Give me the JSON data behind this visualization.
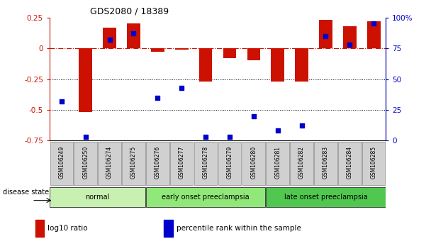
{
  "title": "GDS2080 / 18389",
  "samples": [
    "GSM106249",
    "GSM106250",
    "GSM106274",
    "GSM106275",
    "GSM106276",
    "GSM106277",
    "GSM106278",
    "GSM106279",
    "GSM106280",
    "GSM106281",
    "GSM106282",
    "GSM106283",
    "GSM106284",
    "GSM106285"
  ],
  "log10_ratio": [
    0.0,
    -0.52,
    0.17,
    0.2,
    -0.03,
    -0.01,
    -0.27,
    -0.08,
    -0.1,
    -0.27,
    -0.27,
    0.23,
    0.18,
    0.22
  ],
  "percentile_rank": [
    32,
    3,
    82,
    87,
    35,
    43,
    3,
    3,
    20,
    8,
    12,
    85,
    78,
    95
  ],
  "groups": [
    {
      "label": "normal",
      "start": 0,
      "end": 4,
      "color": "#c8f0b0"
    },
    {
      "label": "early onset preeclampsia",
      "start": 4,
      "end": 9,
      "color": "#90e878"
    },
    {
      "label": "late onset preeclampsia",
      "start": 9,
      "end": 14,
      "color": "#50c850"
    }
  ],
  "bar_color": "#cc1100",
  "dot_color": "#0000cc",
  "ylim_left": [
    -0.75,
    0.25
  ],
  "ylim_right": [
    0,
    100
  ],
  "yticks_left": [
    0.25,
    0.0,
    -0.25,
    -0.5,
    -0.75
  ],
  "yticks_right": [
    100,
    75,
    50,
    25,
    0
  ],
  "dotted_lines": [
    -0.25,
    -0.5
  ],
  "legend_items": [
    {
      "label": "log10 ratio",
      "color": "#cc1100"
    },
    {
      "label": "percentile rank within the sample",
      "color": "#0000cc"
    }
  ],
  "disease_state_label": "disease state",
  "bar_width": 0.55,
  "dot_size": 22
}
